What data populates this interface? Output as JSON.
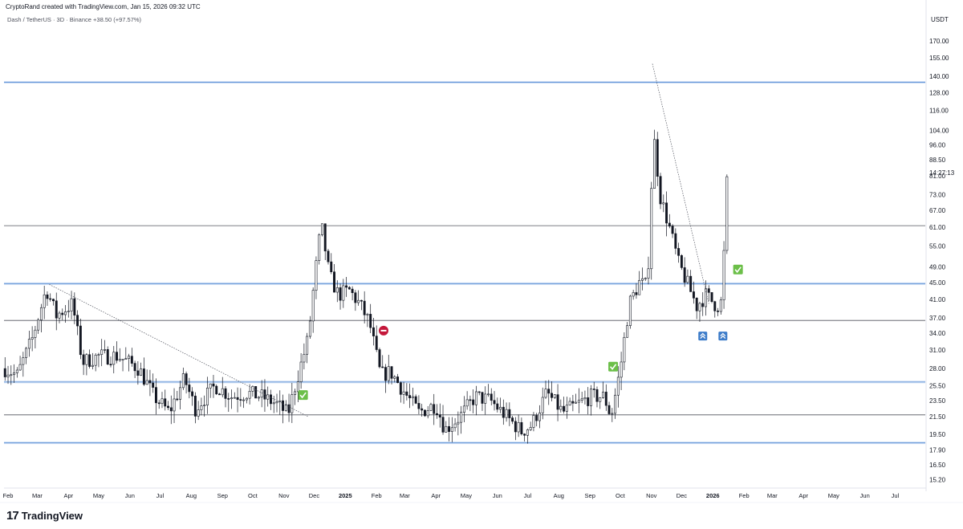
{
  "header": {
    "credit": "CryptoRand created with TradingView.com, Jan 15, 2026 09:32 UTC",
    "symbol": "Dash / TetherUS · 3D · Binance",
    "change": "+38.50 (+97.57%)"
  },
  "currency": "USDT",
  "countdown": "14:27:13",
  "brand": {
    "mark": "17",
    "name": "TradingView"
  },
  "colors": {
    "up": "#ffffff",
    "down": "#131722",
    "wick": "#131722",
    "support_line": "#90b4e6",
    "level_line": "#50535e",
    "check_badge": "#6cbf49",
    "no_entry": "#c4173a",
    "rocket_badge": "#3d7cc9"
  },
  "chart_data": {
    "type": "candlestick",
    "title": "Dash / TetherUS · 3D · Binance",
    "ylabel": "USDT",
    "y_scale": "log",
    "ylim": [
      14.5,
      185
    ],
    "y_ticks": [
      "170.00",
      "155.00",
      "140.00",
      "128.00",
      "116.00",
      "104.00",
      "96.00",
      "88.50",
      "81.00",
      "73.00",
      "67.00",
      "61.00",
      "55.00",
      "49.00",
      "45.00",
      "41.00",
      "37.00",
      "34.00",
      "31.00",
      "28.00",
      "25.50",
      "23.50",
      "21.50",
      "19.50",
      "17.90",
      "16.50",
      "15.20"
    ],
    "x_ticks": [
      "Feb",
      "Mar",
      "Apr",
      "May",
      "Jun",
      "Jul",
      "Aug",
      "Sep",
      "Oct",
      "Nov",
      "Dec",
      "2025",
      "Feb",
      "Mar",
      "Apr",
      "May",
      "Jun",
      "Jul",
      "Aug",
      "Sep",
      "Oct",
      "Nov",
      "Dec",
      "2026",
      "Feb",
      "Mar",
      "Apr",
      "May",
      "Jun",
      "Jul"
    ],
    "price_anchors": [
      [
        "2024-01-29",
        28.0
      ],
      [
        "2024-02-10",
        27.0
      ],
      [
        "2024-02-25",
        33.0
      ],
      [
        "2024-03-10",
        43.5
      ],
      [
        "2024-03-20",
        37.5
      ],
      [
        "2024-04-05",
        40.0
      ],
      [
        "2024-04-15",
        29.0
      ],
      [
        "2024-05-01",
        30.0
      ],
      [
        "2024-05-20",
        30.0
      ],
      [
        "2024-06-10",
        28.0
      ],
      [
        "2024-06-25",
        24.0
      ],
      [
        "2024-07-10",
        22.0
      ],
      [
        "2024-07-25",
        26.5
      ],
      [
        "2024-08-05",
        22.5
      ],
      [
        "2024-08-25",
        25.5
      ],
      [
        "2024-09-10",
        24.0
      ],
      [
        "2024-09-25",
        24.5
      ],
      [
        "2024-10-10",
        24.0
      ],
      [
        "2024-10-25",
        23.0
      ],
      [
        "2024-11-05",
        21.8
      ],
      [
        "2024-11-15",
        27.0
      ],
      [
        "2024-11-25",
        33.0
      ],
      [
        "2024-12-01",
        45.0
      ],
      [
        "2024-12-08",
        62.0
      ],
      [
        "2024-12-16",
        47.0
      ],
      [
        "2024-12-25",
        42.0
      ],
      [
        "2025-01-05",
        43.0
      ],
      [
        "2025-01-15",
        40.0
      ],
      [
        "2025-01-25",
        36.0
      ],
      [
        "2025-02-05",
        27.0
      ],
      [
        "2025-02-15",
        27.5
      ],
      [
        "2025-03-01",
        24.5
      ],
      [
        "2025-03-15",
        22.0
      ],
      [
        "2025-04-01",
        23.0
      ],
      [
        "2025-04-10",
        20.0
      ],
      [
        "2025-04-25",
        21.5
      ],
      [
        "2025-05-10",
        24.0
      ],
      [
        "2025-05-25",
        23.5
      ],
      [
        "2025-06-10",
        21.5
      ],
      [
        "2025-06-25",
        19.8
      ],
      [
        "2025-07-05",
        20.5
      ],
      [
        "2025-07-20",
        24.5
      ],
      [
        "2025-08-05",
        22.0
      ],
      [
        "2025-08-20",
        23.0
      ],
      [
        "2025-09-01",
        24.0
      ],
      [
        "2025-09-15",
        24.0
      ],
      [
        "2025-09-22",
        21.5
      ],
      [
        "2025-10-01",
        28.0
      ],
      [
        "2025-10-10",
        40.0
      ],
      [
        "2025-10-20",
        45.0
      ],
      [
        "2025-10-28",
        44.0
      ],
      [
        "2025-11-03",
        102.0
      ],
      [
        "2025-11-10",
        72.0
      ],
      [
        "2025-11-18",
        62.0
      ],
      [
        "2025-11-28",
        50.0
      ],
      [
        "2025-12-08",
        44.0
      ],
      [
        "2025-12-16",
        39.5
      ],
      [
        "2025-12-25",
        42.0
      ],
      [
        "2026-01-05",
        39.5
      ],
      [
        "2026-01-10",
        40.5
      ],
      [
        "2026-01-15",
        78.0
      ]
    ],
    "horizontal_lines": [
      {
        "price": 135.5,
        "style": "support"
      },
      {
        "price": 61.5,
        "style": "level"
      },
      {
        "price": 44.7,
        "style": "support"
      },
      {
        "price": 36.5,
        "style": "level"
      },
      {
        "price": 26.0,
        "style": "support"
      },
      {
        "price": 21.7,
        "style": "level"
      },
      {
        "price": 18.6,
        "style": "support"
      }
    ],
    "trendlines": [
      {
        "from": [
          "2024-03-13",
          44.5
        ],
        "to": [
          "2024-11-25",
          21.5
        ]
      },
      {
        "from": [
          "2025-11-02",
          150.0
        ],
        "to": [
          "2025-12-28",
          40.0
        ]
      }
    ],
    "markers": [
      {
        "type": "check",
        "date": "2024-11-20",
        "price": 24.2
      },
      {
        "type": "no-entry",
        "date": "2025-02-08",
        "price": 34.5
      },
      {
        "type": "check",
        "date": "2025-09-24",
        "price": 28.3
      },
      {
        "type": "rocket",
        "date": "2025-12-22",
        "price": 33.5
      },
      {
        "type": "rocket",
        "date": "2026-01-11",
        "price": 33.5
      },
      {
        "type": "check",
        "date": "2026-01-26",
        "price": 48.3
      }
    ],
    "x_domain": [
      "2024-01-28",
      "2026-07-31"
    ],
    "grid": false,
    "legend": "none"
  }
}
